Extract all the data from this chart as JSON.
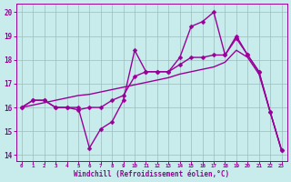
{
  "xlabel": "Windchill (Refroidissement éolien,°C)",
  "bg_color": "#c8ecec",
  "line_color": "#990099",
  "grid_color": "#9bbcbc",
  "xlim": [
    -0.5,
    23.5
  ],
  "ylim": [
    13.75,
    20.35
  ],
  "xticks": [
    0,
    1,
    2,
    3,
    4,
    5,
    6,
    7,
    8,
    9,
    10,
    11,
    12,
    13,
    14,
    15,
    16,
    17,
    18,
    19,
    20,
    21,
    22,
    23
  ],
  "yticks": [
    14,
    15,
    16,
    17,
    18,
    19,
    20
  ],
  "s1x": [
    0,
    1,
    2,
    3,
    4,
    5,
    6,
    7,
    8,
    9,
    10,
    11,
    12,
    13,
    14,
    15,
    16,
    17,
    18,
    19,
    20,
    21,
    22,
    23
  ],
  "s1y": [
    16.0,
    16.3,
    16.3,
    16.0,
    16.0,
    16.0,
    14.3,
    15.1,
    15.4,
    16.3,
    18.4,
    17.5,
    17.5,
    17.5,
    18.1,
    19.4,
    19.6,
    20.0,
    18.2,
    19.0,
    18.2,
    17.5,
    15.8,
    14.2
  ],
  "s2x": [
    0,
    1,
    2,
    3,
    4,
    5,
    6,
    7,
    8,
    9,
    10,
    11,
    12,
    13,
    14,
    15,
    16,
    17,
    18,
    19,
    20,
    21,
    22,
    23
  ],
  "s2y": [
    16.0,
    16.3,
    16.3,
    16.0,
    16.0,
    15.9,
    16.0,
    16.0,
    16.3,
    16.5,
    17.3,
    17.5,
    17.5,
    17.5,
    17.8,
    18.1,
    18.1,
    18.2,
    18.2,
    18.9,
    18.2,
    17.5,
    15.8,
    14.2
  ],
  "s3x": [
    0,
    1,
    2,
    3,
    4,
    5,
    6,
    7,
    8,
    9,
    10,
    11,
    12,
    13,
    14,
    15,
    16,
    17,
    18,
    19,
    20,
    21,
    22,
    23
  ],
  "s3y": [
    16.0,
    16.1,
    16.2,
    16.3,
    16.4,
    16.5,
    16.55,
    16.65,
    16.75,
    16.85,
    16.95,
    17.05,
    17.15,
    17.25,
    17.4,
    17.5,
    17.6,
    17.7,
    17.9,
    18.4,
    18.1,
    17.4,
    15.8,
    14.2
  ],
  "marker": "D",
  "marker_size": 2.5,
  "line_width": 1.0
}
